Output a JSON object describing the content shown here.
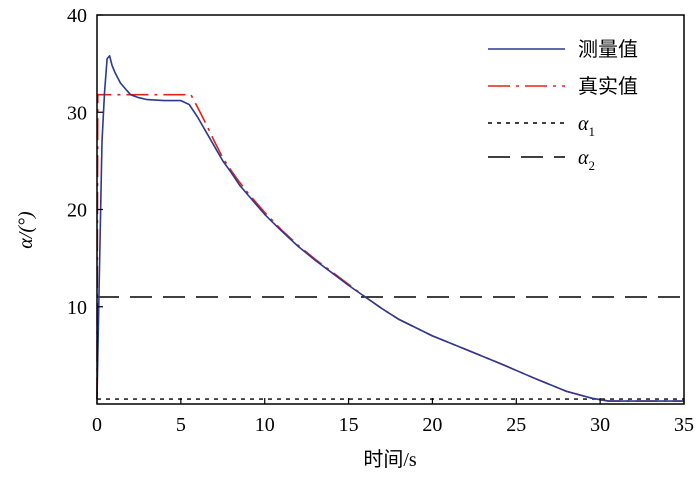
{
  "chart_data": {
    "type": "line",
    "xlabel": "时间/s",
    "ylabel": "α/(°)",
    "xlim": [
      0,
      35
    ],
    "ylim": [
      0,
      40
    ],
    "xticks": [
      0,
      5,
      10,
      15,
      20,
      25,
      30,
      35
    ],
    "yticks": [
      10,
      20,
      30,
      40
    ],
    "grid": false,
    "legend_position": "top-right",
    "series": [
      {
        "name": "测量值",
        "color": "#2b3990",
        "style": "solid",
        "x": [
          0.0,
          0.15,
          0.3,
          0.45,
          0.6,
          0.75,
          0.9,
          1.1,
          1.4,
          2.0,
          2.5,
          3.0,
          4.0,
          5.0,
          5.5,
          6.0,
          6.5,
          7.0,
          7.5,
          8.0,
          8.5,
          9.0,
          10.0,
          11.0,
          12.0,
          13.0,
          14.0,
          15.0,
          16.0,
          17.0,
          18.0,
          20.0,
          22.0,
          24.0,
          26.0,
          28.0,
          29.5,
          30.5,
          31.0,
          35.0
        ],
        "y": [
          0.5,
          14.0,
          27.0,
          32.0,
          35.5,
          35.8,
          34.8,
          34.0,
          33.0,
          31.8,
          31.5,
          31.3,
          31.2,
          31.2,
          30.8,
          29.5,
          28.0,
          26.5,
          25.0,
          23.8,
          22.5,
          21.5,
          19.5,
          17.8,
          16.2,
          14.8,
          13.5,
          12.2,
          11.0,
          9.8,
          8.7,
          7.0,
          5.6,
          4.2,
          2.7,
          1.3,
          0.6,
          0.3,
          0.3,
          0.3
        ]
      },
      {
        "name": "真实值",
        "color": "#e2231a",
        "style": "dashdot",
        "x": [
          0.0,
          0.05,
          0.6,
          2.0,
          4.0,
          5.6,
          6.0,
          6.5,
          7.0,
          7.5,
          8.0,
          8.5,
          9.0,
          10.0,
          11.0,
          12.0,
          13.0,
          14.0,
          15.0,
          16.0,
          17.0,
          18.0,
          20.0,
          22.0,
          24.0,
          26.0,
          28.0,
          29.5,
          30.5,
          31.0,
          35.0
        ],
        "y": [
          0.5,
          31.8,
          31.8,
          31.8,
          31.8,
          31.8,
          30.5,
          28.8,
          27.0,
          25.3,
          24.0,
          22.8,
          21.7,
          19.7,
          17.9,
          16.3,
          14.9,
          13.6,
          12.3,
          11.0,
          9.8,
          8.7,
          7.0,
          5.6,
          4.2,
          2.7,
          1.3,
          0.6,
          0.3,
          0.3,
          0.3
        ]
      },
      {
        "name": "α1",
        "color": "#000000",
        "style": "dotted",
        "x": [
          0,
          35
        ],
        "y": [
          0.5,
          0.5
        ]
      },
      {
        "name": "α2",
        "color": "#000000",
        "style": "longdash",
        "x": [
          0,
          35
        ],
        "y": [
          11,
          11
        ]
      }
    ]
  },
  "legend": [
    {
      "label": "测量值",
      "color": "#2b3990",
      "style": "solid"
    },
    {
      "label": "真实值",
      "color": "#e2231a",
      "style": "dashdot"
    },
    {
      "label": "α",
      "subscript": "1",
      "color": "#000000",
      "style": "dotted"
    },
    {
      "label": "α",
      "subscript": "2",
      "color": "#000000",
      "style": "longdash"
    }
  ]
}
